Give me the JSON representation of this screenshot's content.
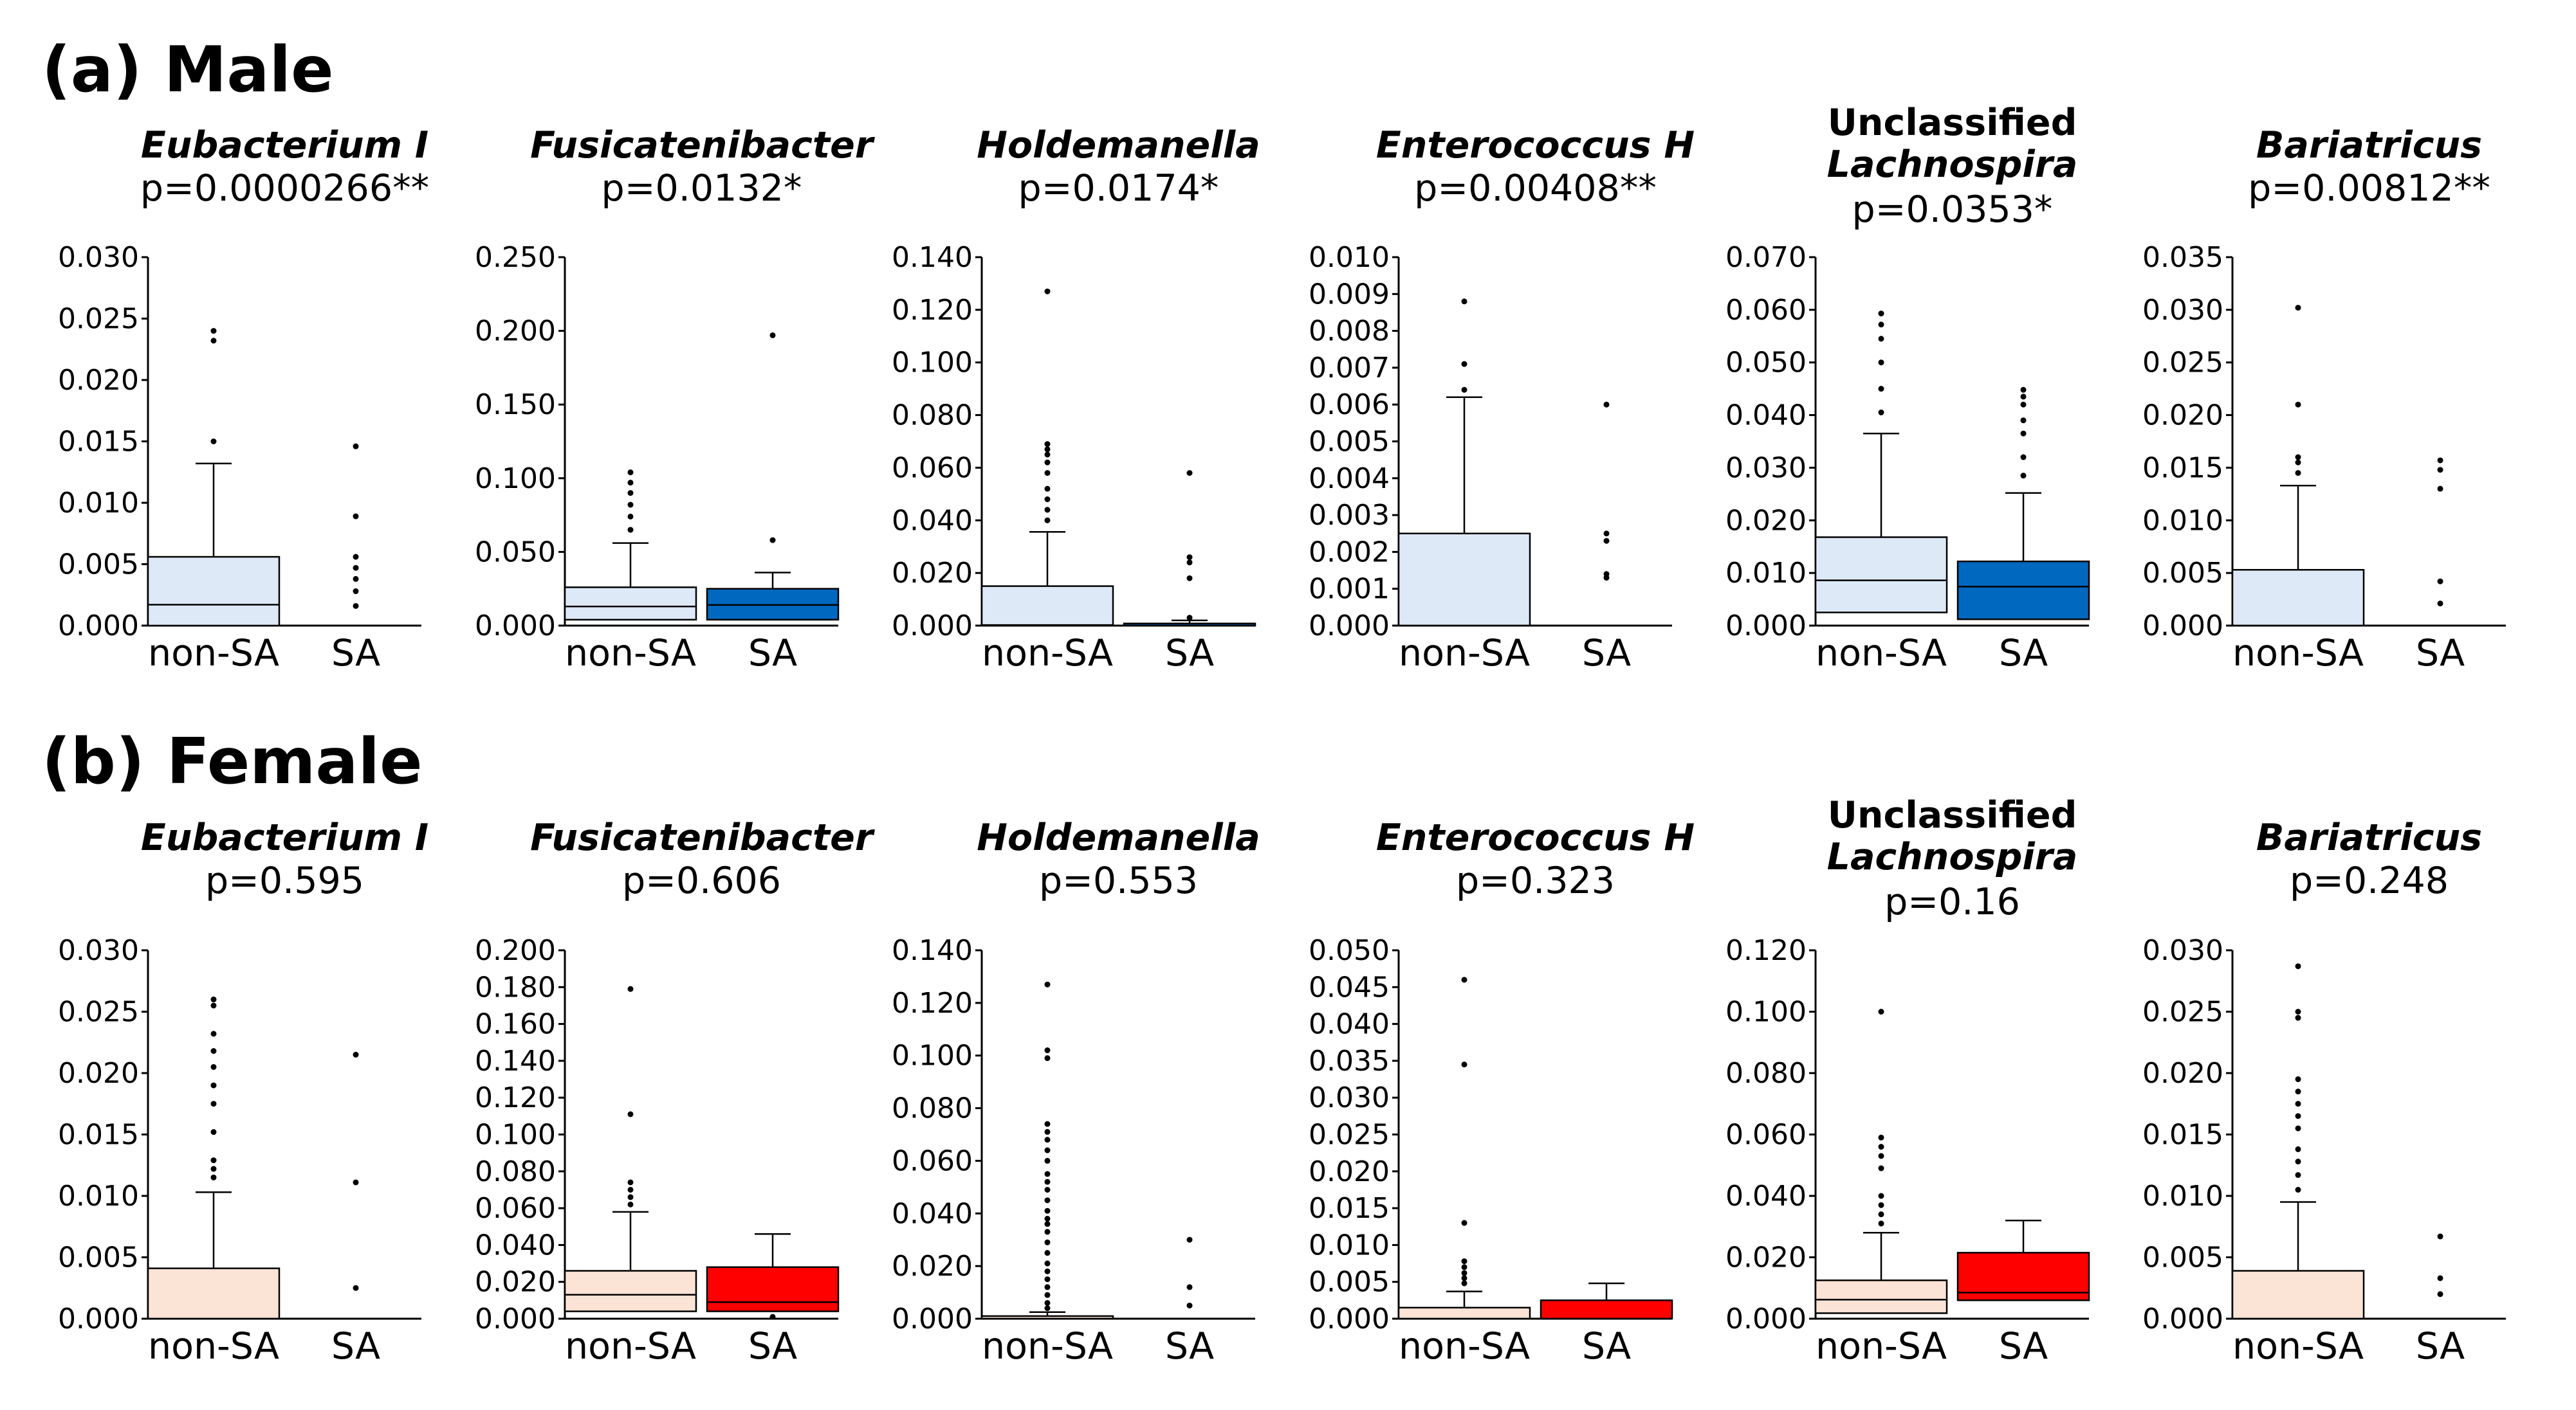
{
  "sections": [
    {
      "id": "male",
      "label": "(a) Male",
      "non_sa_fill": "#dde9f7",
      "sa_fill": "#0068be",
      "panels": [
        {
          "title_lines": [
            {
              "text": "Eubacterium I",
              "italic": true
            }
          ],
          "pvalue": "p=0.0000266**",
          "ticks": [
            "0.000",
            "0.005",
            "0.010",
            "0.015",
            "0.020",
            "0.025",
            "0.030"
          ]
        },
        {
          "title_lines": [
            {
              "text": "Fusicatenibacter",
              "italic": true
            }
          ],
          "pvalue": "p=0.0132*",
          "ticks": [
            "0.000",
            "0.050",
            "0.100",
            "0.150",
            "0.200",
            "0.250"
          ]
        },
        {
          "title_lines": [
            {
              "text": "Holdemanella",
              "italic": true
            }
          ],
          "pvalue": "p=0.0174*",
          "ticks": [
            "0.000",
            "0.020",
            "0.040",
            "0.060",
            "0.080",
            "0.100",
            "0.120",
            "0.140"
          ]
        },
        {
          "title_lines": [
            {
              "text": "Enterococcus H",
              "italic": true
            }
          ],
          "pvalue": "p=0.00408**",
          "ticks": [
            "0.000",
            "0.001",
            "0.002",
            "0.003",
            "0.004",
            "0.005",
            "0.006",
            "0.007",
            "0.008",
            "0.009",
            "0.010"
          ]
        },
        {
          "title_lines": [
            {
              "text": "Unclassified",
              "italic": false
            },
            {
              "text": "Lachnospira",
              "italic": true
            }
          ],
          "pvalue": "p=0.0353*",
          "ticks": [
            "0.000",
            "0.010",
            "0.020",
            "0.030",
            "0.040",
            "0.050",
            "0.060",
            "0.070"
          ]
        },
        {
          "title_lines": [
            {
              "text": "Bariatricus",
              "italic": true
            }
          ],
          "pvalue": "p=0.00812**",
          "ticks": [
            "0.000",
            "0.005",
            "0.010",
            "0.015",
            "0.020",
            "0.025",
            "0.030",
            "0.035"
          ]
        }
      ]
    },
    {
      "id": "female",
      "label": "(b) Female",
      "non_sa_fill": "#fbe3d6",
      "sa_fill": "#ff0000",
      "panels": [
        {
          "title_lines": [
            {
              "text": "Eubacterium I",
              "italic": true
            }
          ],
          "pvalue": "p=0.595",
          "ticks": [
            "0.000",
            "0.005",
            "0.010",
            "0.015",
            "0.020",
            "0.025",
            "0.030"
          ]
        },
        {
          "title_lines": [
            {
              "text": "Fusicatenibacter",
              "italic": true
            }
          ],
          "pvalue": "p=0.606",
          "ticks": [
            "0.000",
            "0.020",
            "0.040",
            "0.060",
            "0.080",
            "0.100",
            "0.120",
            "0.140",
            "0.160",
            "0.180",
            "0.200"
          ]
        },
        {
          "title_lines": [
            {
              "text": "Holdemanella",
              "italic": true
            }
          ],
          "pvalue": "p=0.553",
          "ticks": [
            "0.000",
            "0.020",
            "0.040",
            "0.060",
            "0.080",
            "0.100",
            "0.120",
            "0.140"
          ]
        },
        {
          "title_lines": [
            {
              "text": "Enterococcus H",
              "italic": true
            }
          ],
          "pvalue": "p=0.323",
          "ticks": [
            "0.000",
            "0.005",
            "0.010",
            "0.015",
            "0.020",
            "0.025",
            "0.030",
            "0.035",
            "0.040",
            "0.045",
            "0.050"
          ]
        },
        {
          "title_lines": [
            {
              "text": "Unclassified",
              "italic": false
            },
            {
              "text": "Lachnospira",
              "italic": true
            }
          ],
          "pvalue": "p=0.16",
          "ticks": [
            "0.000",
            "0.020",
            "0.040",
            "0.060",
            "0.080",
            "0.100",
            "0.120"
          ]
        },
        {
          "title_lines": [
            {
              "text": "Bariatricus",
              "italic": true
            }
          ],
          "pvalue": "p=0.248",
          "ticks": [
            "0.000",
            "0.005",
            "0.010",
            "0.015",
            "0.020",
            "0.025",
            "0.030"
          ]
        }
      ]
    }
  ],
  "chart_data": [
    {
      "type": "box",
      "group": "Male",
      "title": "Eubacterium I",
      "pvalue": "p=0.0000266**",
      "categories": [
        "non-SA",
        "SA"
      ],
      "ylim": [
        0,
        0.03
      ],
      "boxes": [
        {
          "category": "non-SA",
          "q1": 0.0,
          "median": 0.0017,
          "q3": 0.0056,
          "whisker_low": 0.0,
          "whisker_high": 0.0132,
          "outliers": [
            0.015,
            0.0232,
            0.024
          ]
        },
        {
          "category": "SA",
          "q1": 0.0,
          "median": 0.0,
          "q3": 0.0,
          "whisker_low": 0.0,
          "whisker_high": 0.0,
          "outliers": [
            0.0016,
            0.0028,
            0.0038,
            0.0047,
            0.0056,
            0.0089,
            0.0146
          ]
        }
      ]
    },
    {
      "type": "box",
      "group": "Male",
      "title": "Fusicatenibacter",
      "pvalue": "p=0.0132*",
      "categories": [
        "non-SA",
        "SA"
      ],
      "ylim": [
        0,
        0.25
      ],
      "boxes": [
        {
          "category": "non-SA",
          "q1": 0.004,
          "median": 0.013,
          "q3": 0.026,
          "whisker_low": 0.0,
          "whisker_high": 0.056,
          "outliers": [
            0.065,
            0.074,
            0.082,
            0.09,
            0.097,
            0.104
          ]
        },
        {
          "category": "SA",
          "q1": 0.004,
          "median": 0.014,
          "q3": 0.025,
          "whisker_low": 0.0,
          "whisker_high": 0.036,
          "outliers": [
            0.058,
            0.197
          ]
        }
      ]
    },
    {
      "type": "box",
      "group": "Male",
      "title": "Holdemanella",
      "pvalue": "p=0.0174*",
      "categories": [
        "non-SA",
        "SA"
      ],
      "ylim": [
        0,
        0.14
      ],
      "boxes": [
        {
          "category": "non-SA",
          "q1": 0.0,
          "median": 0.0002,
          "q3": 0.015,
          "whisker_low": 0.0,
          "whisker_high": 0.0356,
          "outliers": [
            0.04,
            0.044,
            0.048,
            0.052,
            0.058,
            0.062,
            0.065,
            0.067,
            0.069,
            0.127
          ]
        },
        {
          "category": "SA",
          "q1": 0.0,
          "median": 0.0,
          "q3": 0.0008,
          "whisker_low": 0.0,
          "whisker_high": 0.002,
          "outliers": [
            0.003,
            0.018,
            0.024,
            0.026,
            0.058
          ]
        }
      ]
    },
    {
      "type": "box",
      "group": "Male",
      "title": "Enterococcus H",
      "pvalue": "p=0.00408**",
      "categories": [
        "non-SA",
        "SA"
      ],
      "ylim": [
        0,
        0.01
      ],
      "boxes": [
        {
          "category": "non-SA",
          "q1": 0.0,
          "median": 0.0,
          "q3": 0.0025,
          "whisker_low": 0.0,
          "whisker_high": 0.0062,
          "outliers": [
            0.0064,
            0.0071,
            0.0088
          ]
        },
        {
          "category": "SA",
          "q1": 0.0,
          "median": 0.0,
          "q3": 0.0,
          "whisker_low": 0.0,
          "whisker_high": 0.0,
          "outliers": [
            0.0013,
            0.0014,
            0.0023,
            0.0025,
            0.006
          ]
        }
      ]
    },
    {
      "type": "box",
      "group": "Male",
      "title": "Unclassified Lachnospira",
      "pvalue": "p=0.0353*",
      "categories": [
        "non-SA",
        "SA"
      ],
      "ylim": [
        0,
        0.07
      ],
      "boxes": [
        {
          "category": "non-SA",
          "q1": 0.0025,
          "median": 0.0086,
          "q3": 0.0168,
          "whisker_low": 0.0,
          "whisker_high": 0.0365,
          "outliers": [
            0.0405,
            0.045,
            0.05,
            0.0545,
            0.0572,
            0.0593
          ]
        },
        {
          "category": "SA",
          "q1": 0.0012,
          "median": 0.0074,
          "q3": 0.0122,
          "whisker_low": 0.0,
          "whisker_high": 0.0252,
          "outliers": [
            0.0285,
            0.032,
            0.0365,
            0.039,
            0.042,
            0.0435,
            0.0448
          ]
        }
      ]
    },
    {
      "type": "box",
      "group": "Male",
      "title": "Bariatricus",
      "pvalue": "p=0.00812**",
      "categories": [
        "non-SA",
        "SA"
      ],
      "ylim": [
        0,
        0.035
      ],
      "boxes": [
        {
          "category": "non-SA",
          "q1": 0.0,
          "median": 0.0,
          "q3": 0.0053,
          "whisker_low": 0.0,
          "whisker_high": 0.0133,
          "outliers": [
            0.0145,
            0.0155,
            0.016,
            0.021,
            0.0302
          ]
        },
        {
          "category": "SA",
          "q1": 0.0,
          "median": 0.0,
          "q3": 0.0,
          "whisker_low": 0.0,
          "whisker_high": 0.0,
          "outliers": [
            0.0021,
            0.0042,
            0.013,
            0.0148,
            0.0157
          ]
        }
      ]
    },
    {
      "type": "box",
      "group": "Female",
      "title": "Eubacterium I",
      "pvalue": "p=0.595",
      "categories": [
        "non-SA",
        "SA"
      ],
      "ylim": [
        0,
        0.03
      ],
      "boxes": [
        {
          "category": "non-SA",
          "q1": 0.0,
          "median": 0.0,
          "q3": 0.0041,
          "whisker_low": 0.0,
          "whisker_high": 0.0103,
          "outliers": [
            0.0115,
            0.0122,
            0.0129,
            0.0152,
            0.0175,
            0.019,
            0.0205,
            0.0218,
            0.0232,
            0.0255,
            0.026
          ]
        },
        {
          "category": "SA",
          "q1": 0.0,
          "median": 0.0,
          "q3": 0.0,
          "whisker_low": 0.0,
          "whisker_high": 0.0,
          "outliers": [
            0.0025,
            0.0111,
            0.0215
          ]
        }
      ]
    },
    {
      "type": "box",
      "group": "Female",
      "title": "Fusicatenibacter",
      "pvalue": "p=0.606",
      "categories": [
        "non-SA",
        "SA"
      ],
      "ylim": [
        0,
        0.2
      ],
      "boxes": [
        {
          "category": "non-SA",
          "q1": 0.004,
          "median": 0.013,
          "q3": 0.026,
          "whisker_low": 0.0,
          "whisker_high": 0.058,
          "outliers": [
            0.062,
            0.066,
            0.07,
            0.074,
            0.111,
            0.179
          ]
        },
        {
          "category": "SA",
          "q1": 0.004,
          "median": 0.009,
          "q3": 0.028,
          "whisker_low": 0.0,
          "whisker_high": 0.046,
          "outliers": [
            0.001
          ]
        }
      ]
    },
    {
      "type": "box",
      "group": "Female",
      "title": "Holdemanella",
      "pvalue": "p=0.553",
      "categories": [
        "non-SA",
        "SA"
      ],
      "ylim": [
        0,
        0.14
      ],
      "boxes": [
        {
          "category": "non-SA",
          "q1": 0.0,
          "median": 0.0,
          "q3": 0.001,
          "whisker_low": 0.0,
          "whisker_high": 0.0025,
          "outliers": [
            0.004,
            0.006,
            0.009,
            0.012,
            0.015,
            0.018,
            0.021,
            0.025,
            0.029,
            0.033,
            0.036,
            0.038,
            0.041,
            0.045,
            0.049,
            0.052,
            0.055,
            0.06,
            0.064,
            0.068,
            0.071,
            0.074,
            0.099,
            0.102,
            0.127
          ]
        },
        {
          "category": "SA",
          "q1": 0.0,
          "median": 0.0,
          "q3": 0.0,
          "whisker_low": 0.0,
          "whisker_high": 0.0,
          "outliers": [
            0.005,
            0.012,
            0.03
          ]
        }
      ]
    },
    {
      "type": "box",
      "group": "Female",
      "title": "Enterococcus H",
      "pvalue": "p=0.323",
      "categories": [
        "non-SA",
        "SA"
      ],
      "ylim": [
        0,
        0.05
      ],
      "boxes": [
        {
          "category": "non-SA",
          "q1": 0.0,
          "median": 0.0,
          "q3": 0.0015,
          "whisker_low": 0.0,
          "whisker_high": 0.0037,
          "outliers": [
            0.0048,
            0.0055,
            0.0062,
            0.007,
            0.0078,
            0.013,
            0.0345,
            0.046
          ]
        },
        {
          "category": "SA",
          "q1": 0.0,
          "median": 0.0,
          "q3": 0.0025,
          "whisker_low": 0.0,
          "whisker_high": 0.0048,
          "outliers": []
        }
      ]
    },
    {
      "type": "box",
      "group": "Female",
      "title": "Unclassified Lachnospira",
      "pvalue": "p=0.16",
      "categories": [
        "non-SA",
        "SA"
      ],
      "ylim": [
        0,
        0.12
      ],
      "boxes": [
        {
          "category": "non-SA",
          "q1": 0.0018,
          "median": 0.0062,
          "q3": 0.0125,
          "whisker_low": 0.0,
          "whisker_high": 0.028,
          "outliers": [
            0.031,
            0.034,
            0.037,
            0.04,
            0.049,
            0.053,
            0.056,
            0.059,
            0.1
          ]
        },
        {
          "category": "SA",
          "q1": 0.006,
          "median": 0.0085,
          "q3": 0.0215,
          "whisker_low": 0.0,
          "whisker_high": 0.032,
          "outliers": []
        }
      ]
    },
    {
      "type": "box",
      "group": "Female",
      "title": "Bariatricus",
      "pvalue": "p=0.248",
      "categories": [
        "non-SA",
        "SA"
      ],
      "ylim": [
        0,
        0.03
      ],
      "boxes": [
        {
          "category": "non-SA",
          "q1": 0.0,
          "median": 0.0,
          "q3": 0.0039,
          "whisker_low": 0.0,
          "whisker_high": 0.0095,
          "outliers": [
            0.0105,
            0.0117,
            0.0128,
            0.0138,
            0.0155,
            0.0165,
            0.0175,
            0.0185,
            0.0195,
            0.0245,
            0.025,
            0.0287
          ]
        },
        {
          "category": "SA",
          "q1": 0.0,
          "median": 0.0,
          "q3": 0.0,
          "whisker_low": 0.0,
          "whisker_high": 0.0,
          "outliers": [
            0.002,
            0.0033,
            0.0067
          ]
        }
      ]
    }
  ]
}
